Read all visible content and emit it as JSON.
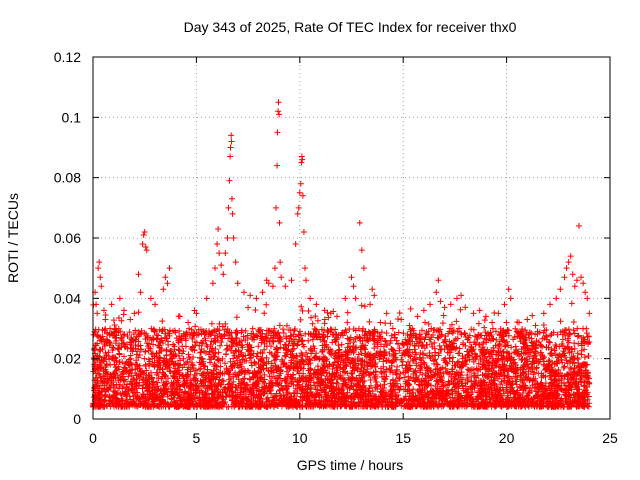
{
  "chart_data": {
    "type": "scatter",
    "title": "Day 343 of 2025, Rate Of TEC Index for receiver thx0",
    "xlabel": "GPS time / hours",
    "ylabel": "ROTI / TECUs",
    "xlim": [
      0,
      25
    ],
    "ylim": [
      0,
      0.12
    ],
    "x_ticks": [
      0,
      5,
      10,
      15,
      20,
      25
    ],
    "x_tick_labels": [
      "0",
      "5",
      "10",
      "15",
      "20",
      "25"
    ],
    "y_ticks": [
      0,
      0.02,
      0.04,
      0.06,
      0.08,
      0.1,
      0.12
    ],
    "y_tick_labels": [
      "0",
      "0.02",
      "0.04",
      "0.06",
      "0.08",
      "0.1",
      "0.12"
    ],
    "grid": true,
    "marker": "+",
    "color": "#ff0000",
    "series": [
      {
        "name": "ROTI",
        "points": [
          [
            0.1,
            0.042
          ],
          [
            0.15,
            0.038
          ],
          [
            0.2,
            0.035
          ],
          [
            0.25,
            0.05
          ],
          [
            0.3,
            0.052
          ],
          [
            0.35,
            0.047
          ],
          [
            0.4,
            0.044
          ],
          [
            0.6,
            0.033
          ],
          [
            0.9,
            0.038
          ],
          [
            1.3,
            0.04
          ],
          [
            1.5,
            0.036
          ],
          [
            1.8,
            0.033
          ],
          [
            2.0,
            0.035
          ],
          [
            2.2,
            0.048
          ],
          [
            2.3,
            0.042
          ],
          [
            2.4,
            0.058
          ],
          [
            2.45,
            0.061
          ],
          [
            2.5,
            0.062
          ],
          [
            2.55,
            0.057
          ],
          [
            2.6,
            0.056
          ],
          [
            2.8,
            0.04
          ],
          [
            3.0,
            0.038
          ],
          [
            3.4,
            0.043
          ],
          [
            3.5,
            0.047
          ],
          [
            3.6,
            0.045
          ],
          [
            3.7,
            0.05
          ],
          [
            4.2,
            0.034
          ],
          [
            4.6,
            0.032
          ],
          [
            5.0,
            0.035
          ],
          [
            5.5,
            0.04
          ],
          [
            5.8,
            0.045
          ],
          [
            5.9,
            0.05
          ],
          [
            6.0,
            0.058
          ],
          [
            6.05,
            0.063
          ],
          [
            6.1,
            0.055
          ],
          [
            6.2,
            0.051
          ],
          [
            6.3,
            0.048
          ],
          [
            6.4,
            0.055
          ],
          [
            6.5,
            0.06
          ],
          [
            6.55,
            0.07
          ],
          [
            6.6,
            0.079
          ],
          [
            6.63,
            0.087
          ],
          [
            6.65,
            0.09
          ],
          [
            6.68,
            0.094
          ],
          [
            6.7,
            0.092
          ],
          [
            6.72,
            0.073
          ],
          [
            6.75,
            0.068
          ],
          [
            6.8,
            0.06
          ],
          [
            6.9,
            0.052
          ],
          [
            7.0,
            0.045
          ],
          [
            7.3,
            0.042
          ],
          [
            7.6,
            0.041
          ],
          [
            7.9,
            0.04
          ],
          [
            8.2,
            0.042
          ],
          [
            8.4,
            0.046
          ],
          [
            8.5,
            0.045
          ],
          [
            8.7,
            0.044
          ],
          [
            8.8,
            0.05
          ],
          [
            8.85,
            0.07
          ],
          [
            8.9,
            0.084
          ],
          [
            8.92,
            0.095
          ],
          [
            8.95,
            0.102
          ],
          [
            8.97,
            0.105
          ],
          [
            9.0,
            0.101
          ],
          [
            9.02,
            0.065
          ],
          [
            9.05,
            0.052
          ],
          [
            9.1,
            0.047
          ],
          [
            9.3,
            0.044
          ],
          [
            9.6,
            0.046
          ],
          [
            9.8,
            0.058
          ],
          [
            9.9,
            0.068
          ],
          [
            9.95,
            0.07
          ],
          [
            10.0,
            0.075
          ],
          [
            10.05,
            0.078
          ],
          [
            10.08,
            0.085
          ],
          [
            10.1,
            0.087
          ],
          [
            10.12,
            0.086
          ],
          [
            10.15,
            0.074
          ],
          [
            10.2,
            0.062
          ],
          [
            10.25,
            0.05
          ],
          [
            10.3,
            0.046
          ],
          [
            10.5,
            0.04
          ],
          [
            10.8,
            0.038
          ],
          [
            11.2,
            0.036
          ],
          [
            11.5,
            0.035
          ],
          [
            11.8,
            0.034
          ],
          [
            12.2,
            0.04
          ],
          [
            12.5,
            0.047
          ],
          [
            12.6,
            0.044
          ],
          [
            12.7,
            0.04
          ],
          [
            12.9,
            0.065
          ],
          [
            13.0,
            0.056
          ],
          [
            13.1,
            0.05
          ],
          [
            13.4,
            0.038
          ],
          [
            13.5,
            0.043
          ],
          [
            13.6,
            0.041
          ],
          [
            13.9,
            0.032
          ],
          [
            14.2,
            0.035
          ],
          [
            14.5,
            0.03
          ],
          [
            14.9,
            0.033
          ],
          [
            15.3,
            0.031
          ],
          [
            15.7,
            0.034
          ],
          [
            16.0,
            0.036
          ],
          [
            16.3,
            0.038
          ],
          [
            16.6,
            0.042
          ],
          [
            16.7,
            0.046
          ],
          [
            16.8,
            0.039
          ],
          [
            17.0,
            0.037
          ],
          [
            17.3,
            0.038
          ],
          [
            17.6,
            0.04
          ],
          [
            17.8,
            0.041
          ],
          [
            18.0,
            0.037
          ],
          [
            18.4,
            0.035
          ],
          [
            18.7,
            0.036
          ],
          [
            19.0,
            0.034
          ],
          [
            19.3,
            0.032
          ],
          [
            19.6,
            0.035
          ],
          [
            19.9,
            0.038
          ],
          [
            20.1,
            0.043
          ],
          [
            20.2,
            0.04
          ],
          [
            20.6,
            0.032
          ],
          [
            21.0,
            0.033
          ],
          [
            21.4,
            0.031
          ],
          [
            21.8,
            0.035
          ],
          [
            22.1,
            0.038
          ],
          [
            22.4,
            0.04
          ],
          [
            22.6,
            0.043
          ],
          [
            22.8,
            0.047
          ],
          [
            22.9,
            0.05
          ],
          [
            23.0,
            0.052
          ],
          [
            23.1,
            0.054
          ],
          [
            23.2,
            0.048
          ],
          [
            23.3,
            0.044
          ],
          [
            23.4,
            0.046
          ],
          [
            23.5,
            0.064
          ],
          [
            23.6,
            0.047
          ],
          [
            23.7,
            0.045
          ],
          [
            23.8,
            0.042
          ],
          [
            23.9,
            0.04
          ],
          [
            24.0,
            0.035
          ]
        ]
      }
    ]
  }
}
